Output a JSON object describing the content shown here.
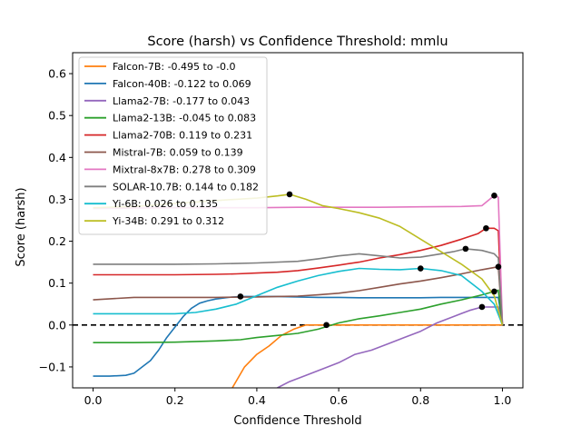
{
  "chart_data": {
    "type": "line",
    "title": "Score (harsh) vs Confidence Threshold: mmlu",
    "xlabel": "Confidence Threshold",
    "ylabel": "Score (harsh)",
    "xlim": [
      -0.05,
      1.05
    ],
    "ylim": [
      -0.15,
      0.65
    ],
    "xticks": [
      0.0,
      0.2,
      0.4,
      0.6,
      0.8,
      1.0
    ],
    "xtick_labels": [
      "0.0",
      "0.2",
      "0.4",
      "0.6",
      "0.8",
      "1.0"
    ],
    "yticks": [
      -0.1,
      0.0,
      0.1,
      0.2,
      0.3,
      0.4,
      0.5,
      0.6
    ],
    "ytick_labels": [
      "−0.1",
      "0.0",
      "0.1",
      "0.2",
      "0.3",
      "0.4",
      "0.5",
      "0.6"
    ],
    "grid": false,
    "legend_position": "top-left",
    "baseline": {
      "y": 0.0,
      "style": "dashed",
      "color": "#000000"
    },
    "series": [
      {
        "name": "Falcon-7B: -0.495 to -0.0",
        "color": "#ff7f0e",
        "x": [
          0.34,
          0.37,
          0.4,
          0.43,
          0.46,
          0.49,
          0.52,
          0.55,
          0.57,
          0.6,
          0.65,
          0.7,
          0.75,
          0.8,
          0.85,
          0.9,
          0.95,
          0.99,
          1.0
        ],
        "y": [
          -0.15,
          -0.1,
          -0.07,
          -0.05,
          -0.025,
          -0.01,
          0.0,
          0.0,
          0.0,
          0.0,
          0.0,
          0.0,
          0.0,
          0.0,
          0.0,
          0.0,
          0.0,
          0.0,
          0.0
        ],
        "marker": {
          "x": 0.57,
          "y": 0.0
        }
      },
      {
        "name": "Falcon-40B: -0.122 to 0.069",
        "color": "#1f77b4",
        "x": [
          0.0,
          0.04,
          0.08,
          0.1,
          0.12,
          0.14,
          0.16,
          0.18,
          0.2,
          0.22,
          0.24,
          0.26,
          0.28,
          0.3,
          0.33,
          0.36,
          0.4,
          0.45,
          0.5,
          0.55,
          0.6,
          0.65,
          0.7,
          0.75,
          0.8,
          0.85,
          0.9,
          0.95,
          0.99,
          1.0
        ],
        "y": [
          -0.122,
          -0.122,
          -0.12,
          -0.115,
          -0.1,
          -0.085,
          -0.06,
          -0.03,
          -0.005,
          0.02,
          0.04,
          0.052,
          0.058,
          0.062,
          0.066,
          0.068,
          0.068,
          0.068,
          0.067,
          0.066,
          0.066,
          0.065,
          0.065,
          0.065,
          0.065,
          0.066,
          0.066,
          0.066,
          0.066,
          0.0
        ],
        "marker": {
          "x": 0.36,
          "y": 0.068
        }
      },
      {
        "name": "Llama2-7B: -0.177 to 0.043",
        "color": "#9467bd",
        "x": [
          0.45,
          0.48,
          0.52,
          0.56,
          0.6,
          0.64,
          0.68,
          0.72,
          0.76,
          0.8,
          0.84,
          0.88,
          0.92,
          0.95,
          0.99,
          1.0
        ],
        "y": [
          -0.15,
          -0.135,
          -0.12,
          -0.105,
          -0.09,
          -0.07,
          -0.06,
          -0.045,
          -0.03,
          -0.015,
          0.005,
          0.02,
          0.035,
          0.043,
          0.043,
          0.0
        ],
        "marker": {
          "x": 0.95,
          "y": 0.043
        }
      },
      {
        "name": "Llama2-13B: -0.045 to 0.083",
        "color": "#2ca02c",
        "x": [
          0.0,
          0.1,
          0.2,
          0.3,
          0.36,
          0.4,
          0.45,
          0.5,
          0.55,
          0.6,
          0.65,
          0.7,
          0.75,
          0.8,
          0.85,
          0.9,
          0.95,
          0.98,
          0.99,
          1.0
        ],
        "y": [
          -0.042,
          -0.042,
          -0.041,
          -0.038,
          -0.035,
          -0.03,
          -0.025,
          -0.02,
          -0.01,
          0.005,
          0.015,
          0.022,
          0.03,
          0.038,
          0.05,
          0.06,
          0.072,
          0.08,
          0.083,
          0.0
        ],
        "marker": {
          "x": 0.98,
          "y": 0.08
        }
      },
      {
        "name": "Llama2-70B: 0.119 to 0.231",
        "color": "#d62728",
        "x": [
          0.0,
          0.1,
          0.2,
          0.3,
          0.35,
          0.4,
          0.45,
          0.5,
          0.55,
          0.6,
          0.65,
          0.7,
          0.75,
          0.8,
          0.85,
          0.9,
          0.94,
          0.96,
          0.98,
          0.99,
          1.0
        ],
        "y": [
          0.12,
          0.12,
          0.12,
          0.121,
          0.122,
          0.124,
          0.126,
          0.13,
          0.136,
          0.143,
          0.15,
          0.16,
          0.168,
          0.178,
          0.19,
          0.205,
          0.218,
          0.231,
          0.231,
          0.225,
          0.0
        ],
        "marker": {
          "x": 0.96,
          "y": 0.231
        }
      },
      {
        "name": "Mistral-7B: 0.059 to 0.139",
        "color": "#8c564b",
        "x": [
          0.0,
          0.1,
          0.2,
          0.3,
          0.4,
          0.45,
          0.5,
          0.55,
          0.6,
          0.65,
          0.7,
          0.75,
          0.8,
          0.85,
          0.9,
          0.95,
          0.99,
          1.0
        ],
        "y": [
          0.06,
          0.066,
          0.066,
          0.066,
          0.067,
          0.068,
          0.069,
          0.072,
          0.076,
          0.082,
          0.09,
          0.098,
          0.105,
          0.113,
          0.122,
          0.132,
          0.139,
          0.0
        ],
        "marker": {
          "x": 0.99,
          "y": 0.139
        }
      },
      {
        "name": "Mixtral-8x7B: 0.278 to 0.309",
        "color": "#e377c2",
        "x": [
          0.0,
          0.1,
          0.2,
          0.3,
          0.4,
          0.5,
          0.6,
          0.7,
          0.8,
          0.9,
          0.95,
          0.98,
          0.99,
          1.0
        ],
        "y": [
          0.278,
          0.279,
          0.28,
          0.28,
          0.28,
          0.281,
          0.281,
          0.281,
          0.282,
          0.283,
          0.285,
          0.309,
          0.305,
          0.0
        ],
        "marker": {
          "x": 0.98,
          "y": 0.309
        }
      },
      {
        "name": "SOLAR-10.7B: 0.144 to 0.182",
        "color": "#7f7f7f",
        "x": [
          0.0,
          0.1,
          0.2,
          0.3,
          0.4,
          0.5,
          0.55,
          0.6,
          0.65,
          0.7,
          0.75,
          0.8,
          0.85,
          0.88,
          0.91,
          0.95,
          0.98,
          0.99,
          1.0
        ],
        "y": [
          0.145,
          0.145,
          0.145,
          0.146,
          0.148,
          0.152,
          0.158,
          0.165,
          0.17,
          0.165,
          0.16,
          0.162,
          0.17,
          0.175,
          0.182,
          0.178,
          0.17,
          0.16,
          0.0
        ],
        "marker": {
          "x": 0.91,
          "y": 0.182
        }
      },
      {
        "name": "Yi-6B: 0.026 to 0.135",
        "color": "#17becf",
        "x": [
          0.0,
          0.1,
          0.2,
          0.25,
          0.3,
          0.35,
          0.4,
          0.45,
          0.5,
          0.55,
          0.6,
          0.65,
          0.7,
          0.75,
          0.8,
          0.85,
          0.9,
          0.95,
          0.98,
          1.0
        ],
        "y": [
          0.027,
          0.027,
          0.027,
          0.03,
          0.038,
          0.05,
          0.07,
          0.09,
          0.105,
          0.118,
          0.128,
          0.135,
          0.133,
          0.132,
          0.135,
          0.13,
          0.118,
          0.08,
          0.05,
          0.0
        ],
        "marker": {
          "x": 0.8,
          "y": 0.135
        }
      },
      {
        "name": "Yi-34B: 0.291 to 0.312",
        "color": "#bcbd22",
        "x": [
          0.0,
          0.1,
          0.2,
          0.3,
          0.35,
          0.4,
          0.45,
          0.48,
          0.52,
          0.56,
          0.6,
          0.65,
          0.7,
          0.75,
          0.8,
          0.85,
          0.9,
          0.95,
          0.98,
          1.0
        ],
        "y": [
          0.28,
          0.283,
          0.29,
          0.297,
          0.3,
          0.303,
          0.308,
          0.312,
          0.3,
          0.285,
          0.278,
          0.268,
          0.255,
          0.235,
          0.205,
          0.175,
          0.145,
          0.11,
          0.07,
          0.0
        ],
        "marker": {
          "x": 0.48,
          "y": 0.312
        }
      }
    ]
  }
}
